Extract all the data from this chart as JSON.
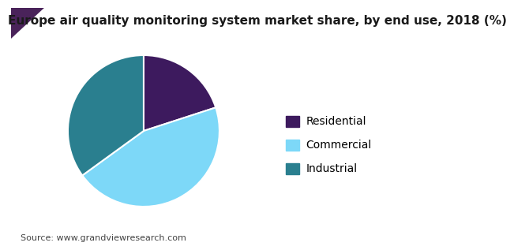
{
  "title": "Europe air quality monitoring system market share, by end use, 2018 (%)",
  "source": "Source: www.grandviewresearch.com",
  "labels": [
    "Residential",
    "Commercial",
    "Industrial"
  ],
  "values": [
    20,
    45,
    35
  ],
  "colors": [
    "#3d1a5e",
    "#7dd8f8",
    "#2a7f8f"
  ],
  "startangle": 90,
  "background_color": "#ffffff",
  "title_fontsize": 11,
  "legend_fontsize": 10,
  "source_fontsize": 8,
  "wedge_edgecolor": "#ffffff",
  "wedge_linewidth": 1.5,
  "header_triangle_color": "#4a235a",
  "header_line_color": "#5c2d7a",
  "title_color": "#1a1a1a"
}
